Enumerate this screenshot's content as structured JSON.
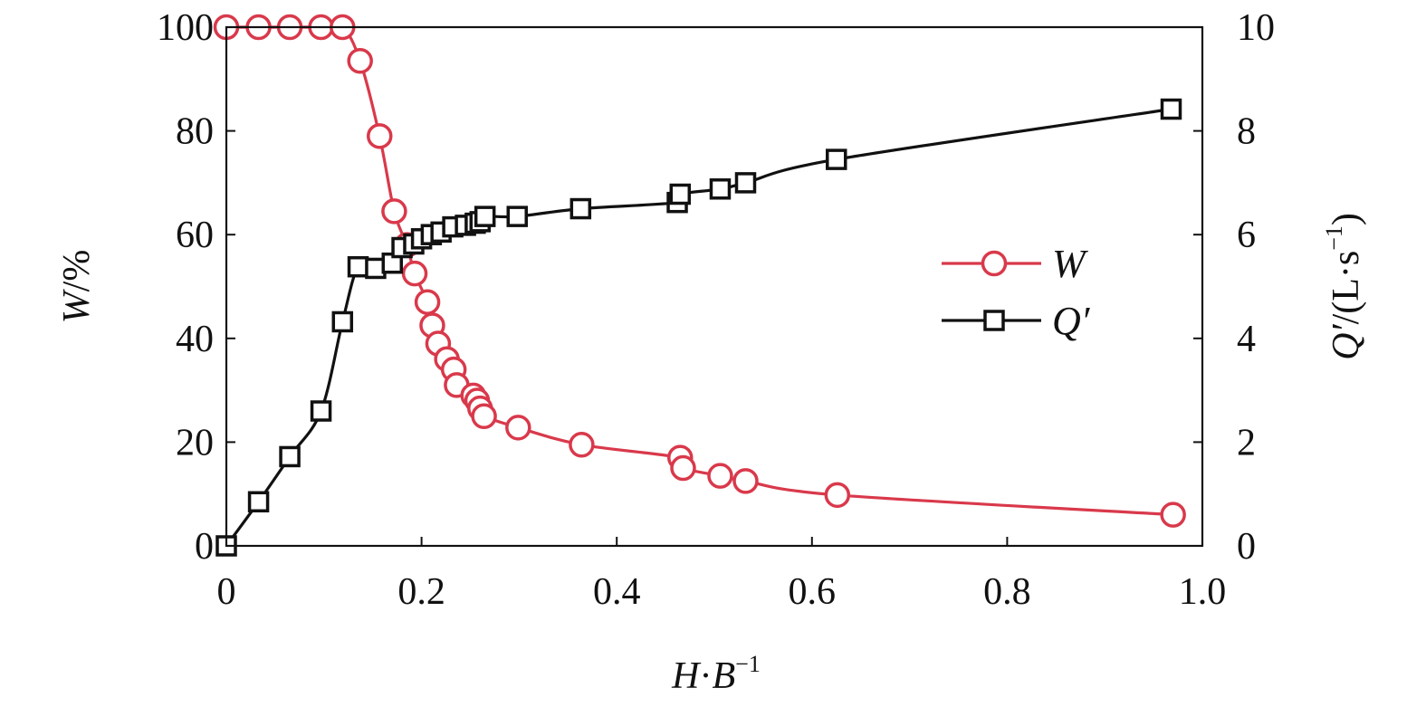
{
  "chart_data": {
    "type": "line",
    "x_axis": {
      "label_parts": [
        "H",
        "·B",
        "−1"
      ],
      "range": [
        0,
        1.0
      ],
      "ticks": [
        "0",
        "0.2",
        "0.4",
        "0.6",
        "0.8",
        "1.0"
      ],
      "tick_values": [
        0,
        0.2,
        0.4,
        0.6,
        0.8,
        1.0
      ]
    },
    "y_left": {
      "label_parts": [
        "W",
        "/%"
      ],
      "range": [
        0,
        100
      ],
      "ticks": [
        "0",
        "20",
        "40",
        "60",
        "80",
        "100"
      ],
      "tick_values": [
        0,
        20,
        40,
        60,
        80,
        100
      ]
    },
    "y_right": {
      "label_parts": [
        "Q′",
        "/(L·s",
        "−1",
        ")"
      ],
      "range": [
        0,
        10
      ],
      "ticks": [
        "0",
        "2",
        "4",
        "6",
        "8",
        "10"
      ],
      "tick_values": [
        0,
        2,
        4,
        6,
        8,
        10
      ]
    },
    "legend": {
      "position": "right-middle"
    },
    "grid": false,
    "series": [
      {
        "name": "W",
        "axis": "left",
        "marker": "circle",
        "color": "#D9394B",
        "points": [
          [
            0.0,
            100.0
          ],
          [
            0.033,
            100.0
          ],
          [
            0.065,
            100.0
          ],
          [
            0.097,
            100.0
          ],
          [
            0.119,
            100.0
          ],
          [
            0.137,
            93.5
          ],
          [
            0.157,
            79.0
          ],
          [
            0.172,
            64.5
          ],
          [
            0.185,
            58.0
          ],
          [
            0.193,
            52.5
          ],
          [
            0.206,
            47.0
          ],
          [
            0.211,
            42.5
          ],
          [
            0.217,
            39.0
          ],
          [
            0.226,
            36.0
          ],
          [
            0.233,
            34.0
          ],
          [
            0.236,
            31.0
          ],
          [
            0.253,
            29.0
          ],
          [
            0.257,
            28.0
          ],
          [
            0.26,
            26.5
          ],
          [
            0.264,
            25.0
          ],
          [
            0.299,
            22.8
          ],
          [
            0.364,
            19.5
          ],
          [
            0.465,
            17.0
          ],
          [
            0.468,
            15.0
          ],
          [
            0.506,
            13.5
          ],
          [
            0.532,
            12.5
          ],
          [
            0.626,
            9.8
          ],
          [
            0.97,
            6.0
          ]
        ]
      },
      {
        "name": "Q′",
        "axis": "right",
        "marker": "square",
        "color": "#111111",
        "points": [
          [
            0.0,
            0.0
          ],
          [
            0.033,
            0.85
          ],
          [
            0.065,
            1.72
          ],
          [
            0.097,
            2.6
          ],
          [
            0.119,
            4.32
          ],
          [
            0.135,
            5.38
          ],
          [
            0.153,
            5.35
          ],
          [
            0.17,
            5.45
          ],
          [
            0.18,
            5.75
          ],
          [
            0.192,
            5.82
          ],
          [
            0.2,
            5.92
          ],
          [
            0.21,
            6.0
          ],
          [
            0.22,
            6.05
          ],
          [
            0.232,
            6.15
          ],
          [
            0.245,
            6.18
          ],
          [
            0.255,
            6.22
          ],
          [
            0.26,
            6.25
          ],
          [
            0.265,
            6.35
          ],
          [
            0.298,
            6.35
          ],
          [
            0.363,
            6.5
          ],
          [
            0.462,
            6.62
          ],
          [
            0.465,
            6.78
          ],
          [
            0.506,
            6.88
          ],
          [
            0.532,
            7.0
          ],
          [
            0.625,
            7.45
          ],
          [
            0.968,
            8.42
          ]
        ]
      }
    ]
  }
}
